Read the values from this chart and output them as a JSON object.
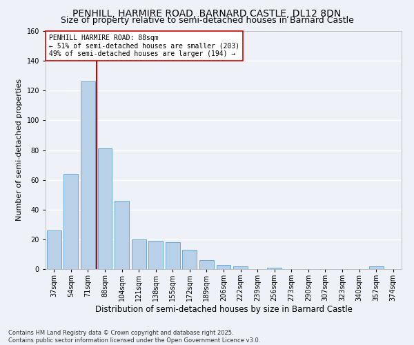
{
  "title": "PENHILL, HARMIRE ROAD, BARNARD CASTLE, DL12 8DN",
  "subtitle": "Size of property relative to semi-detached houses in Barnard Castle",
  "xlabel": "Distribution of semi-detached houses by size in Barnard Castle",
  "ylabel": "Number of semi-detached properties",
  "categories": [
    "37sqm",
    "54sqm",
    "71sqm",
    "88sqm",
    "104sqm",
    "121sqm",
    "138sqm",
    "155sqm",
    "172sqm",
    "189sqm",
    "206sqm",
    "222sqm",
    "239sqm",
    "256sqm",
    "273sqm",
    "290sqm",
    "307sqm",
    "323sqm",
    "340sqm",
    "357sqm",
    "374sqm"
  ],
  "values": [
    26,
    64,
    126,
    81,
    46,
    20,
    19,
    18,
    13,
    6,
    3,
    2,
    0,
    1,
    0,
    0,
    0,
    0,
    0,
    2,
    0
  ],
  "bar_color": "#b8d0e8",
  "bar_edge_color": "#6aaad4",
  "vline_x": 2.5,
  "property_label": "PENHILL HARMIRE ROAD: 88sqm",
  "annotation_line1": "← 51% of semi-detached houses are smaller (203)",
  "annotation_line2": "49% of semi-detached houses are larger (194) →",
  "vline_color": "#cc0000",
  "background_color": "#eef2f8",
  "grid_color": "#ffffff",
  "footnote_line1": "Contains HM Land Registry data © Crown copyright and database right 2025.",
  "footnote_line2": "Contains public sector information licensed under the Open Government Licence v3.0.",
  "ylim": [
    0,
    160
  ],
  "title_fontsize": 10,
  "subtitle_fontsize": 9,
  "xlabel_fontsize": 8.5,
  "ylabel_fontsize": 8,
  "tick_fontsize": 7,
  "annotation_fontsize": 7,
  "footnote_fontsize": 6
}
